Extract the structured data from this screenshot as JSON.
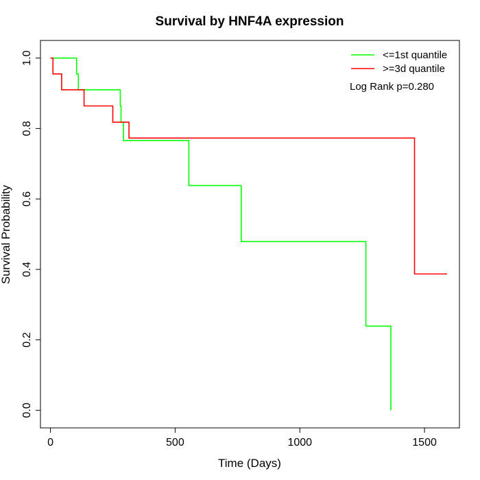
{
  "chart_data": {
    "type": "line",
    "title": "Survival by HNF4A expression",
    "xlabel": "Time (Days)",
    "ylabel": "Survival Probability",
    "xlim": [
      -40,
      1640
    ],
    "ylim": [
      -0.05,
      1.05
    ],
    "x_ticks": [
      {
        "value": 0,
        "label": "0"
      },
      {
        "value": 500,
        "label": "500"
      },
      {
        "value": 1000,
        "label": "1000"
      },
      {
        "value": 1500,
        "label": "1500"
      }
    ],
    "y_ticks": [
      {
        "value": 0.0,
        "label": "0.0"
      },
      {
        "value": 0.2,
        "label": "0.2"
      },
      {
        "value": 0.4,
        "label": "0.4"
      },
      {
        "value": 0.6,
        "label": "0.6"
      },
      {
        "value": 0.8,
        "label": "0.8"
      },
      {
        "value": 1.0,
        "label": "1.0"
      }
    ],
    "grid": false,
    "legend_position": "top-right",
    "annotation": "Log Rank p=0.280",
    "series": [
      {
        "name": "<=1st quantile",
        "color": "#00ff00",
        "step": true,
        "points": [
          [
            0,
            1.0
          ],
          [
            105,
            1.0
          ],
          [
            105,
            0.955
          ],
          [
            112,
            0.955
          ],
          [
            112,
            0.91
          ],
          [
            280,
            0.91
          ],
          [
            280,
            0.864
          ],
          [
            283,
            0.864
          ],
          [
            283,
            0.818
          ],
          [
            293,
            0.818
          ],
          [
            293,
            0.766
          ],
          [
            555,
            0.766
          ],
          [
            555,
            0.638
          ],
          [
            765,
            0.638
          ],
          [
            765,
            0.479
          ],
          [
            1265,
            0.479
          ],
          [
            1265,
            0.239
          ],
          [
            1365,
            0.239
          ],
          [
            1365,
            0.0
          ]
        ]
      },
      {
        "name": ">=3d quantile",
        "color": "#ff0000",
        "step": true,
        "points": [
          [
            0,
            1.0
          ],
          [
            10,
            1.0
          ],
          [
            10,
            0.955
          ],
          [
            45,
            0.955
          ],
          [
            45,
            0.91
          ],
          [
            135,
            0.91
          ],
          [
            135,
            0.864
          ],
          [
            250,
            0.864
          ],
          [
            250,
            0.818
          ],
          [
            315,
            0.818
          ],
          [
            315,
            0.773
          ],
          [
            1460,
            0.773
          ],
          [
            1460,
            0.387
          ],
          [
            1590,
            0.387
          ]
        ]
      }
    ]
  }
}
